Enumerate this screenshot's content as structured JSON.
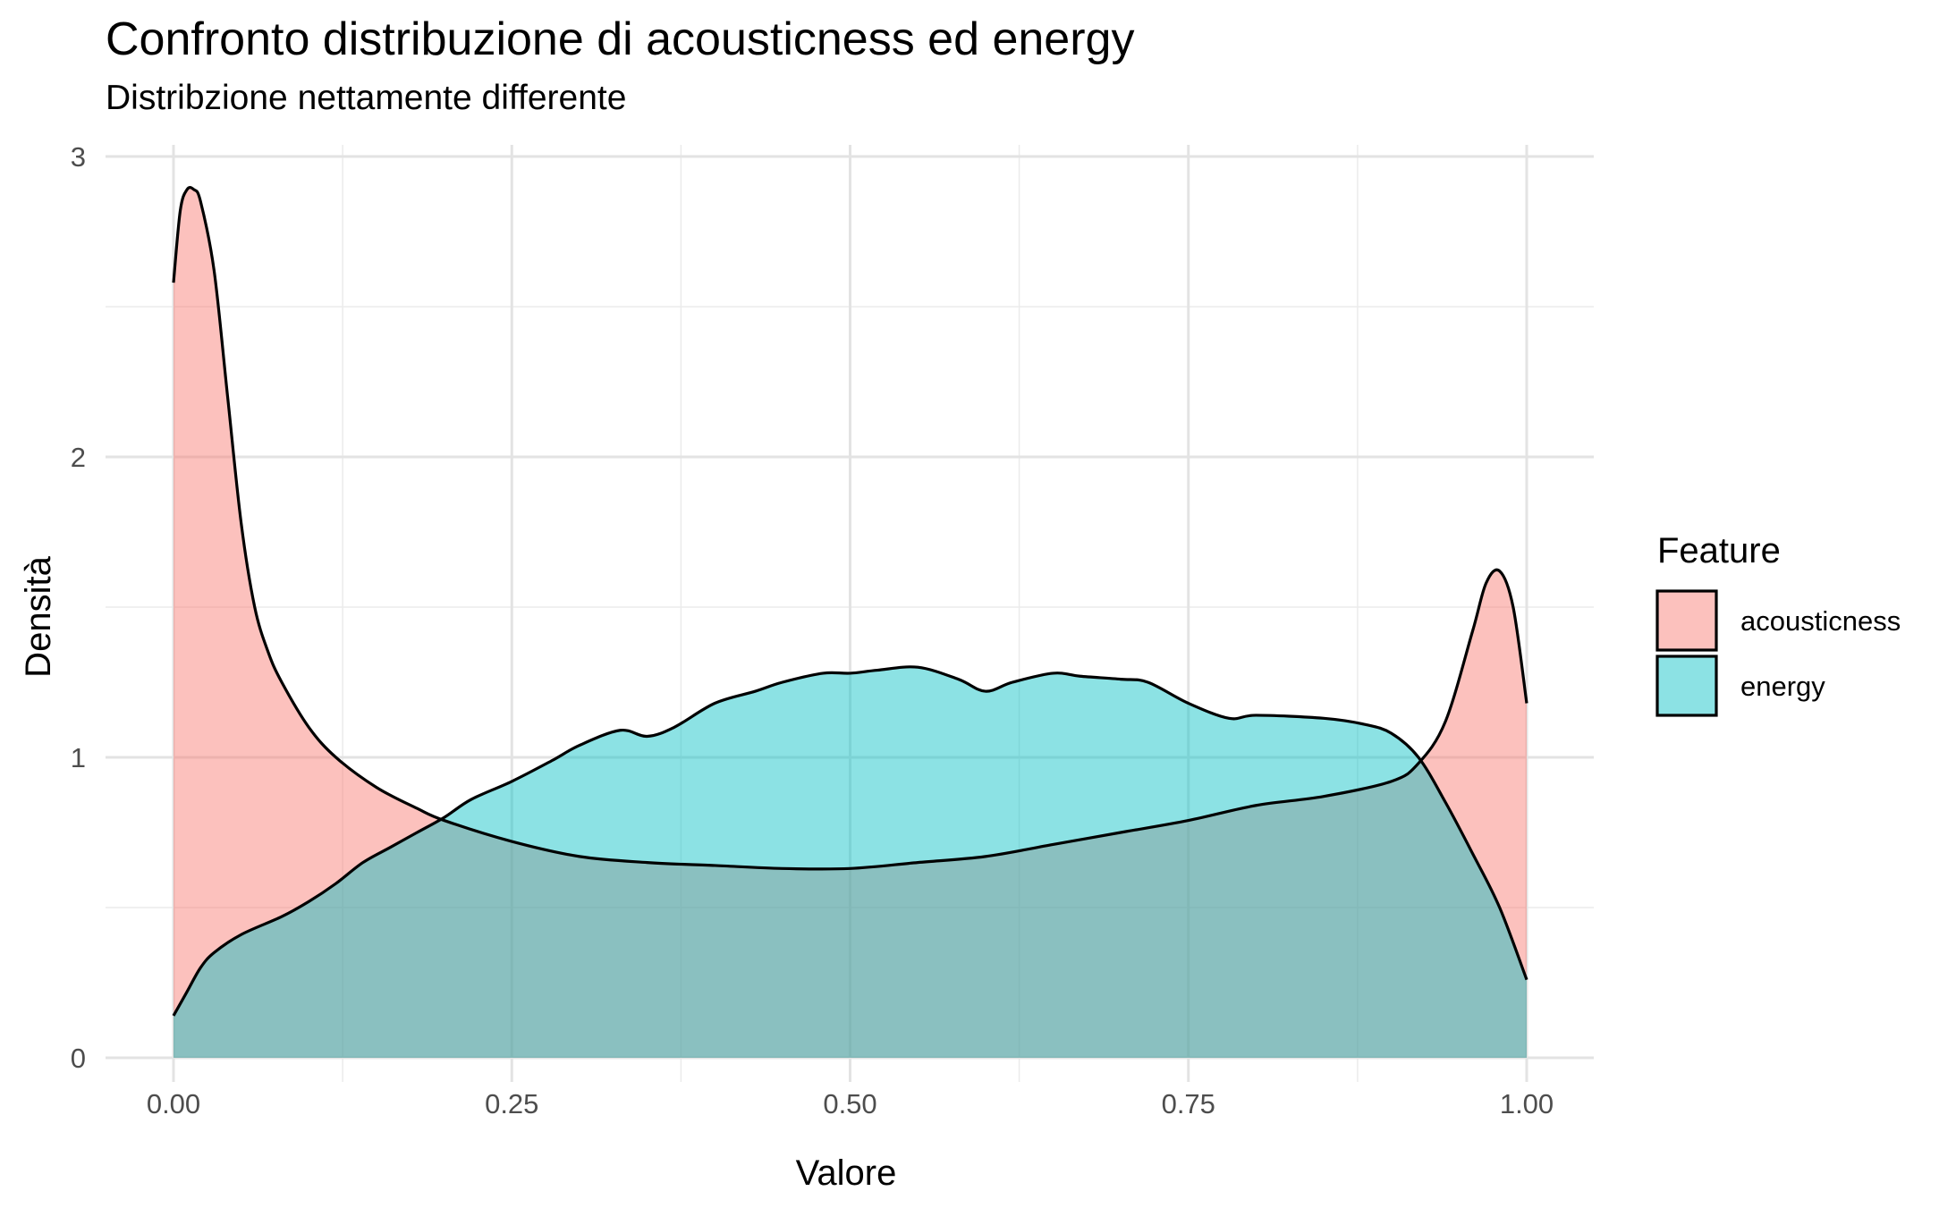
{
  "chart_data": {
    "type": "area",
    "title": "Confronto distribuzione di acousticness ed energy",
    "subtitle": "Distribzione nettamente differente",
    "xlabel": "Valore",
    "ylabel": "Densità",
    "xlim": [
      0,
      1
    ],
    "ylim": [
      0,
      3
    ],
    "x_ticks": [
      "0.00",
      "0.25",
      "0.50",
      "0.75",
      "1.00"
    ],
    "y_ticks": [
      "0",
      "1",
      "2",
      "3"
    ],
    "grid": true,
    "legend": {
      "title": "Feature",
      "position": "right"
    },
    "series": [
      {
        "name": "acousticness",
        "color": "#F8766D",
        "x": [
          0.0,
          0.005,
          0.01,
          0.015,
          0.02,
          0.03,
          0.04,
          0.05,
          0.06,
          0.07,
          0.08,
          0.1,
          0.12,
          0.15,
          0.18,
          0.2,
          0.25,
          0.3,
          0.35,
          0.4,
          0.45,
          0.5,
          0.55,
          0.6,
          0.65,
          0.7,
          0.75,
          0.8,
          0.85,
          0.9,
          0.92,
          0.94,
          0.96,
          0.97,
          0.98,
          0.99,
          1.0
        ],
        "values": [
          2.58,
          2.82,
          2.89,
          2.89,
          2.85,
          2.62,
          2.2,
          1.78,
          1.5,
          1.35,
          1.25,
          1.1,
          1.0,
          0.9,
          0.83,
          0.79,
          0.72,
          0.67,
          0.65,
          0.64,
          0.63,
          0.63,
          0.65,
          0.67,
          0.71,
          0.75,
          0.79,
          0.84,
          0.87,
          0.92,
          0.98,
          1.12,
          1.42,
          1.58,
          1.62,
          1.5,
          1.18
        ]
      },
      {
        "name": "energy",
        "color": "#00BFC4",
        "x": [
          0.0,
          0.01,
          0.02,
          0.03,
          0.05,
          0.08,
          0.1,
          0.12,
          0.14,
          0.16,
          0.18,
          0.2,
          0.22,
          0.25,
          0.28,
          0.3,
          0.33,
          0.35,
          0.37,
          0.4,
          0.43,
          0.45,
          0.48,
          0.5,
          0.52,
          0.55,
          0.58,
          0.6,
          0.62,
          0.65,
          0.67,
          0.7,
          0.72,
          0.75,
          0.78,
          0.8,
          0.85,
          0.88,
          0.9,
          0.92,
          0.94,
          0.96,
          0.98,
          1.0
        ],
        "values": [
          0.14,
          0.22,
          0.3,
          0.35,
          0.41,
          0.47,
          0.52,
          0.58,
          0.65,
          0.7,
          0.75,
          0.8,
          0.86,
          0.92,
          0.99,
          1.04,
          1.09,
          1.07,
          1.1,
          1.18,
          1.22,
          1.25,
          1.28,
          1.28,
          1.29,
          1.3,
          1.26,
          1.22,
          1.25,
          1.28,
          1.27,
          1.26,
          1.25,
          1.18,
          1.13,
          1.14,
          1.13,
          1.11,
          1.08,
          1.0,
          0.85,
          0.68,
          0.5,
          0.26
        ]
      }
    ]
  }
}
